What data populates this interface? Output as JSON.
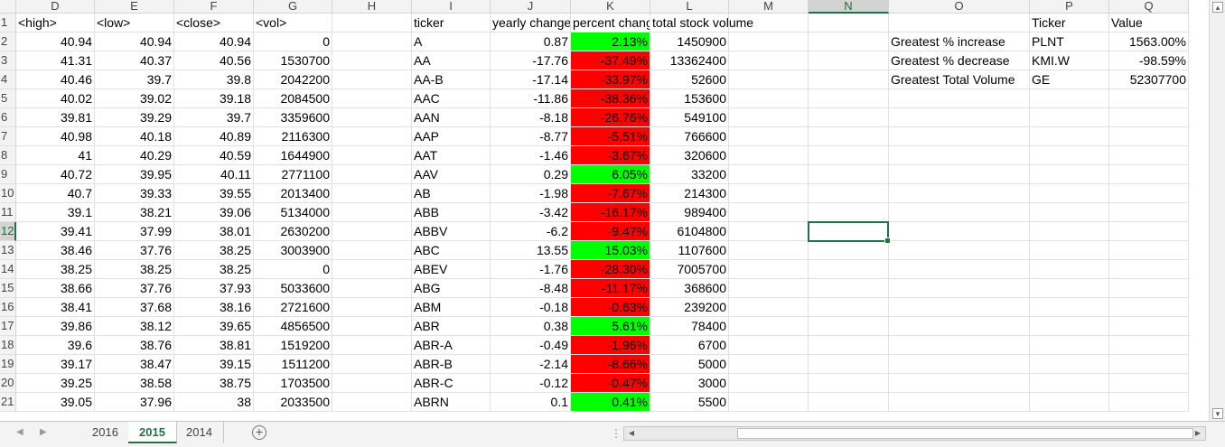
{
  "columns": [
    "D",
    "E",
    "F",
    "G",
    "H",
    "I",
    "J",
    "K",
    "L",
    "M",
    "N",
    "O",
    "P",
    "Q"
  ],
  "selected_column": "N",
  "selected_row": 12,
  "rows": [
    {
      "n": 1,
      "D": "<high>",
      "E": "<low>",
      "F": "<close>",
      "G": "<vol>",
      "I": "ticker",
      "J": "yearly change",
      "K": "percent change",
      "L": "total stock volume",
      "O": "",
      "P": "Ticker",
      "Q": "Value"
    },
    {
      "n": 2,
      "D": "40.94",
      "E": "40.94",
      "F": "40.94",
      "G": "0",
      "I": "A",
      "J": "0.87",
      "K": "2.13%",
      "L": "1450900",
      "O": "Greatest % increase",
      "P": "PLNT",
      "Q": "1563.00%",
      "cf": "green"
    },
    {
      "n": 3,
      "D": "41.31",
      "E": "40.37",
      "F": "40.56",
      "G": "1530700",
      "I": "AA",
      "J": "-17.76",
      "K": "-37.49%",
      "L": "13362400",
      "O": "Greatest % decrease",
      "P": "KMI.W",
      "Q": "-98.59%",
      "cf": "red"
    },
    {
      "n": 4,
      "D": "40.46",
      "E": "39.7",
      "F": "39.8",
      "G": "2042200",
      "I": "AA-B",
      "J": "-17.14",
      "K": "-33.97%",
      "L": "52600",
      "O": "Greatest Total Volume",
      "P": "GE",
      "Q": "52307700",
      "cf": "red"
    },
    {
      "n": 5,
      "D": "40.02",
      "E": "39.02",
      "F": "39.18",
      "G": "2084500",
      "I": "AAC",
      "J": "-11.86",
      "K": "-38.36%",
      "L": "153600",
      "cf": "red"
    },
    {
      "n": 6,
      "D": "39.81",
      "E": "39.29",
      "F": "39.7",
      "G": "3359600",
      "I": "AAN",
      "J": "-8.18",
      "K": "-26.76%",
      "L": "549100",
      "cf": "red"
    },
    {
      "n": 7,
      "D": "40.98",
      "E": "40.18",
      "F": "40.89",
      "G": "2116300",
      "I": "AAP",
      "J": "-8.77",
      "K": "-5.51%",
      "L": "766600",
      "cf": "red"
    },
    {
      "n": 8,
      "D": "41",
      "E": "40.29",
      "F": "40.59",
      "G": "1644900",
      "I": "AAT",
      "J": "-1.46",
      "K": "-3.67%",
      "L": "320600",
      "cf": "red"
    },
    {
      "n": 9,
      "D": "40.72",
      "E": "39.95",
      "F": "40.11",
      "G": "2771100",
      "I": "AAV",
      "J": "0.29",
      "K": "6.05%",
      "L": "33200",
      "cf": "green"
    },
    {
      "n": 10,
      "D": "40.7",
      "E": "39.33",
      "F": "39.55",
      "G": "2013400",
      "I": "AB",
      "J": "-1.98",
      "K": "-7.67%",
      "L": "214300",
      "cf": "red"
    },
    {
      "n": 11,
      "D": "39.1",
      "E": "38.21",
      "F": "39.06",
      "G": "5134000",
      "I": "ABB",
      "J": "-3.42",
      "K": "-16.17%",
      "L": "989400",
      "cf": "red"
    },
    {
      "n": 12,
      "D": "39.41",
      "E": "37.99",
      "F": "38.01",
      "G": "2630200",
      "I": "ABBV",
      "J": "-6.2",
      "K": "-9.47%",
      "L": "6104800",
      "cf": "red"
    },
    {
      "n": 13,
      "D": "38.46",
      "E": "37.76",
      "F": "38.25",
      "G": "3003900",
      "I": "ABC",
      "J": "13.55",
      "K": "15.03%",
      "L": "1107600",
      "cf": "green"
    },
    {
      "n": 14,
      "D": "38.25",
      "E": "38.25",
      "F": "38.25",
      "G": "0",
      "I": "ABEV",
      "J": "-1.76",
      "K": "-28.30%",
      "L": "7005700",
      "cf": "red"
    },
    {
      "n": 15,
      "D": "38.66",
      "E": "37.76",
      "F": "37.93",
      "G": "5033600",
      "I": "ABG",
      "J": "-8.48",
      "K": "-11.17%",
      "L": "368600",
      "cf": "red"
    },
    {
      "n": 16,
      "D": "38.41",
      "E": "37.68",
      "F": "38.16",
      "G": "2721600",
      "I": "ABM",
      "J": "-0.18",
      "K": "-0.63%",
      "L": "239200",
      "cf": "red"
    },
    {
      "n": 17,
      "D": "39.86",
      "E": "38.12",
      "F": "39.65",
      "G": "4856500",
      "I": "ABR",
      "J": "0.38",
      "K": "5.61%",
      "L": "78400",
      "cf": "green"
    },
    {
      "n": 18,
      "D": "39.6",
      "E": "38.76",
      "F": "38.81",
      "G": "1519200",
      "I": "ABR-A",
      "J": "-0.49",
      "K": "-1.96%",
      "L": "6700",
      "cf": "red"
    },
    {
      "n": 19,
      "D": "39.17",
      "E": "38.47",
      "F": "39.15",
      "G": "1511200",
      "I": "ABR-B",
      "J": "-2.14",
      "K": "-8.66%",
      "L": "5000",
      "cf": "red"
    },
    {
      "n": 20,
      "D": "39.25",
      "E": "38.58",
      "F": "38.75",
      "G": "1703500",
      "I": "ABR-C",
      "J": "-0.12",
      "K": "-0.47%",
      "L": "3000",
      "cf": "red"
    },
    {
      "n": 21,
      "D": "39.05",
      "E": "37.96",
      "F": "38",
      "G": "2033500",
      "I": "ABRN",
      "J": "0.1",
      "K": "0.41%",
      "L": "5500",
      "cf": "green"
    }
  ],
  "cf_colors": {
    "green": "#00ff00",
    "red": "#ff0000"
  },
  "sheet_tabs": [
    "2016",
    "2015",
    "2014"
  ],
  "active_tab": "2015",
  "add_sheet_icon": "plus-circle-icon"
}
